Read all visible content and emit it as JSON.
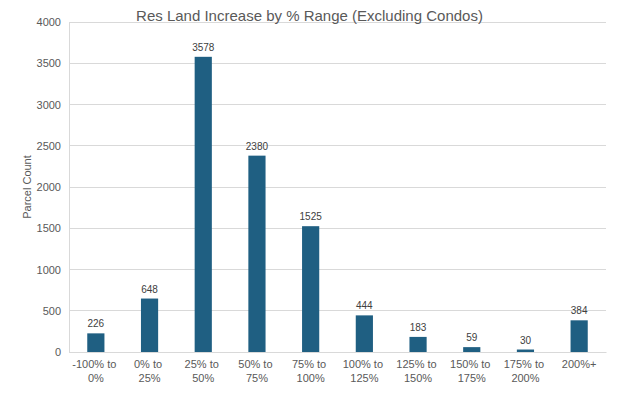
{
  "chart_data": {
    "type": "bar",
    "title": "Res Land Increase by % Range (Excluding Condos)",
    "y_label": "Parcel Count",
    "categories": [
      "-100% to 0%",
      "0% to 25%",
      "25% to 50%",
      "50% to 75%",
      "75% to 100%",
      "100% to 125%",
      "125% to 150%",
      "150% to 175%",
      "175% to 200%",
      "200%+"
    ],
    "values": [
      226,
      648,
      3578,
      2380,
      1525,
      444,
      183,
      59,
      30,
      384
    ],
    "color": "#1f5f82",
    "ylim": [
      0,
      4000
    ],
    "yticks": [
      0,
      500,
      1000,
      1500,
      2000,
      2500,
      3000,
      3500,
      4000
    ],
    "grid": true,
    "data_labels": true
  }
}
